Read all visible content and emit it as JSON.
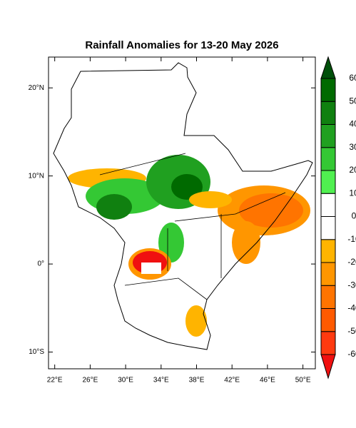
{
  "chart_data": {
    "type": "map",
    "title": "Rainfall Anomalies for 13-20 May 2026",
    "xlim": [
      21.3,
      51.4
    ],
    "ylim": [
      -11.9,
      23.5
    ],
    "xticks": [
      {
        "value": 22,
        "label": "22°E"
      },
      {
        "value": 26,
        "label": "26°E"
      },
      {
        "value": 30,
        "label": "30°E"
      },
      {
        "value": 34,
        "label": "34°E"
      },
      {
        "value": 38,
        "label": "38°E"
      },
      {
        "value": 42,
        "label": "42°E"
      },
      {
        "value": 46,
        "label": "46°E"
      },
      {
        "value": 50,
        "label": "50°E"
      }
    ],
    "yticks": [
      {
        "value": 20,
        "label": "20°N"
      },
      {
        "value": 10,
        "label": "10°N"
      },
      {
        "value": 0,
        "label": "0°"
      },
      {
        "value": -10,
        "label": "10°S"
      }
    ],
    "colorbar": {
      "levels": [
        -60,
        -50,
        -40,
        -30,
        -20,
        -10,
        0,
        10,
        20,
        30,
        40,
        50,
        60
      ],
      "colors": [
        "#f01010",
        "#ff3a10",
        "#ff5a00",
        "#ff7400",
        "#ff9600",
        "#ffb400",
        "#ffffff",
        "#ffffff",
        "#50f050",
        "#34c834",
        "#20a020",
        "#108010",
        "#006a00",
        "#00500a"
      ]
    }
  }
}
